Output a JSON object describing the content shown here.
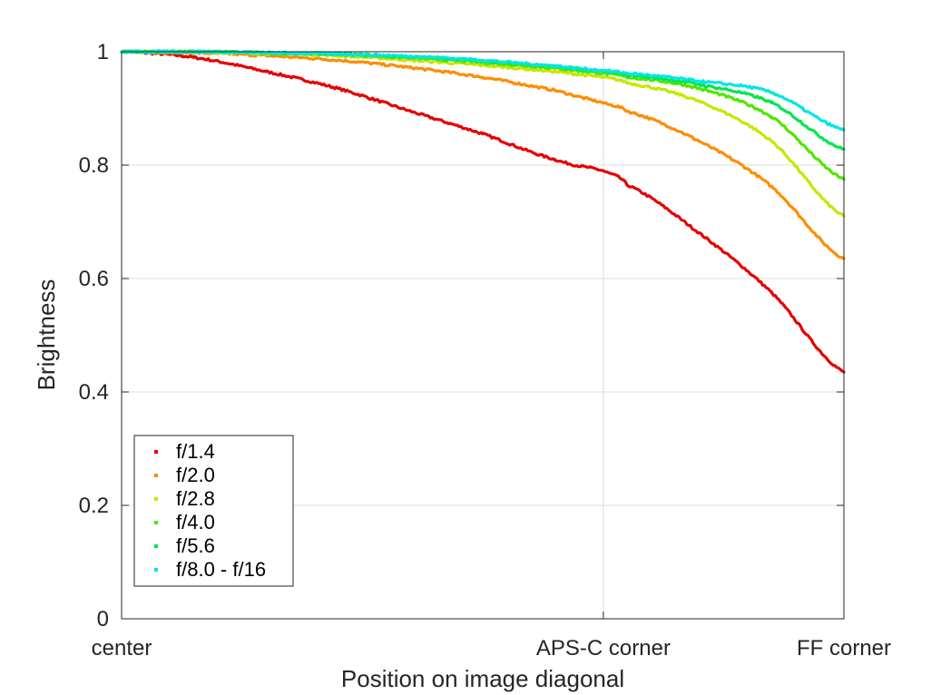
{
  "chart_data": {
    "type": "scatter",
    "xlabel": "Position on image diagonal",
    "ylabel": "Brightness",
    "xlim": [
      0,
      1
    ],
    "ylim": [
      0,
      1
    ],
    "x_ticks": [
      {
        "value": 0,
        "label": "center"
      },
      {
        "value": 0.667,
        "label": "APS-C corner"
      },
      {
        "value": 1,
        "label": "FF corner"
      }
    ],
    "y_ticks": [
      {
        "value": 0,
        "label": "0"
      },
      {
        "value": 0.2,
        "label": "0.2"
      },
      {
        "value": 0.4,
        "label": "0.4"
      },
      {
        "value": 0.6,
        "label": "0.6"
      },
      {
        "value": 0.8,
        "label": "0.8"
      },
      {
        "value": 1,
        "label": "1"
      }
    ],
    "grid": true,
    "legend_position": "bottom-left",
    "x": [
      0,
      0.1,
      0.2,
      0.3,
      0.4,
      0.5,
      0.6,
      0.667,
      0.7,
      0.8,
      0.9,
      1.0
    ],
    "series": [
      {
        "name": "f/1.4",
        "color": "#e60000",
        "values": [
          1.0,
          0.99,
          0.965,
          0.935,
          0.895,
          0.855,
          0.81,
          0.79,
          0.765,
          0.68,
          0.575,
          0.435
        ]
      },
      {
        "name": "f/2.0",
        "color": "#ff8c00",
        "values": [
          1.0,
          0.998,
          0.993,
          0.985,
          0.972,
          0.955,
          0.932,
          0.91,
          0.895,
          0.842,
          0.762,
          0.635
        ]
      },
      {
        "name": "f/2.8",
        "color": "#c8e600",
        "values": [
          1.0,
          0.999,
          0.997,
          0.993,
          0.985,
          0.976,
          0.965,
          0.955,
          0.945,
          0.912,
          0.842,
          0.71
        ]
      },
      {
        "name": "f/4.0",
        "color": "#50e600",
        "values": [
          1.0,
          1.0,
          0.998,
          0.995,
          0.989,
          0.981,
          0.971,
          0.962,
          0.955,
          0.935,
          0.885,
          0.775
        ]
      },
      {
        "name": "f/5.6",
        "color": "#00e650",
        "values": [
          1.0,
          1.0,
          0.998,
          0.996,
          0.991,
          0.984,
          0.974,
          0.965,
          0.959,
          0.942,
          0.91,
          0.828
        ]
      },
      {
        "name": "f/8.0 - f/16",
        "color": "#00e6e6",
        "values": [
          1.0,
          1.0,
          0.998,
          0.996,
          0.992,
          0.985,
          0.975,
          0.967,
          0.962,
          0.948,
          0.928,
          0.862
        ]
      }
    ]
  }
}
